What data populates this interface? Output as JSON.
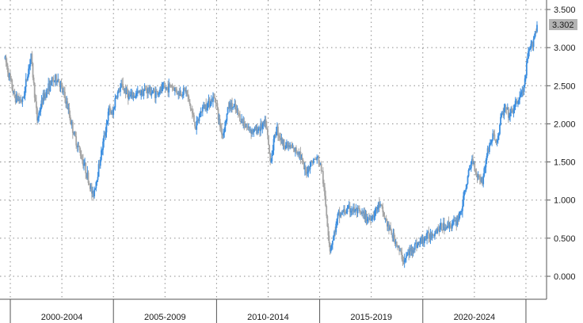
{
  "chart_data": {
    "type": "candlestick",
    "title": "",
    "xlabel": "",
    "ylabel": "",
    "x_axis_labels": [
      "2000-2004",
      "2005-2009",
      "2010-2014",
      "2015-2019",
      "2020-2024"
    ],
    "y_axis": {
      "ticks": [
        "0.000",
        "0.500",
        "1.000",
        "1.500",
        "2.000",
        "2.500",
        "3.000",
        "3.500"
      ],
      "tick_values": [
        0,
        0.5,
        1.0,
        1.5,
        2.0,
        2.5,
        3.0,
        3.5
      ],
      "range": [
        -0.3,
        3.65
      ],
      "position": "right"
    },
    "last_value_label": "3.302",
    "last_value": 3.302,
    "grid": true,
    "colors": {
      "up": "#3d8fe0",
      "down": "#a6a6a6",
      "grid": "#8c8c8c",
      "label_box": "#b3b3b3",
      "axis": "#555555"
    },
    "series": [
      {
        "period": "2000-2004",
        "points": [
          [
            1999.75,
            2.85
          ],
          [
            2000.2,
            2.35
          ],
          [
            2000.6,
            2.3
          ],
          [
            2001.0,
            2.9
          ],
          [
            2001.3,
            2.05
          ],
          [
            2001.6,
            2.35
          ],
          [
            2002.0,
            2.55
          ],
          [
            2002.3,
            2.6
          ],
          [
            2002.7,
            2.3
          ],
          [
            2003.1,
            1.85
          ],
          [
            2003.6,
            1.45
          ],
          [
            2004.0,
            1.05
          ],
          [
            2004.2,
            1.3
          ],
          [
            2004.6,
            1.9
          ],
          [
            2004.8,
            2.2
          ],
          [
            2004.95,
            2.1
          ]
        ]
      },
      {
        "period": "2005-2009",
        "points": [
          [
            2005.1,
            2.35
          ],
          [
            2005.4,
            2.5
          ],
          [
            2005.8,
            2.35
          ],
          [
            2006.2,
            2.4
          ],
          [
            2006.6,
            2.45
          ],
          [
            2007.0,
            2.4
          ],
          [
            2007.4,
            2.45
          ],
          [
            2007.8,
            2.5
          ],
          [
            2008.2,
            2.4
          ],
          [
            2008.5,
            2.45
          ],
          [
            2008.8,
            2.15
          ],
          [
            2009.0,
            1.95
          ],
          [
            2009.3,
            2.2
          ],
          [
            2009.7,
            2.3
          ],
          [
            2009.95,
            2.35
          ]
        ]
      },
      {
        "period": "2010-2014",
        "points": [
          [
            2010.1,
            2.05
          ],
          [
            2010.3,
            1.85
          ],
          [
            2010.6,
            2.25
          ],
          [
            2010.9,
            2.2
          ],
          [
            2011.2,
            2.05
          ],
          [
            2011.5,
            1.95
          ],
          [
            2011.8,
            1.9
          ],
          [
            2012.1,
            1.95
          ],
          [
            2012.4,
            2.0
          ],
          [
            2012.6,
            1.5
          ],
          [
            2012.9,
            1.95
          ],
          [
            2013.2,
            1.75
          ],
          [
            2013.5,
            1.7
          ],
          [
            2013.8,
            1.65
          ],
          [
            2014.0,
            1.65
          ],
          [
            2014.3,
            1.35
          ],
          [
            2014.6,
            1.5
          ],
          [
            2014.9,
            1.55
          ]
        ]
      },
      {
        "period": "2015-2019",
        "points": [
          [
            2015.1,
            1.4
          ],
          [
            2015.3,
            0.9
          ],
          [
            2015.5,
            0.35
          ],
          [
            2015.7,
            0.55
          ],
          [
            2015.9,
            0.8
          ],
          [
            2016.2,
            0.85
          ],
          [
            2016.5,
            0.88
          ],
          [
            2016.8,
            0.85
          ],
          [
            2017.1,
            0.8
          ],
          [
            2017.4,
            0.75
          ],
          [
            2017.7,
            0.85
          ],
          [
            2017.9,
            0.95
          ],
          [
            2018.1,
            0.8
          ],
          [
            2018.4,
            0.6
          ],
          [
            2018.7,
            0.45
          ],
          [
            2018.9,
            0.3
          ],
          [
            2019.1,
            0.2
          ],
          [
            2019.3,
            0.3
          ],
          [
            2019.6,
            0.4
          ],
          [
            2019.9,
            0.45
          ]
        ]
      },
      {
        "period": "2020-2024",
        "points": [
          [
            2020.1,
            0.5
          ],
          [
            2020.4,
            0.55
          ],
          [
            2020.7,
            0.62
          ],
          [
            2021.0,
            0.65
          ],
          [
            2021.3,
            0.68
          ],
          [
            2021.6,
            0.7
          ],
          [
            2021.9,
            0.9
          ],
          [
            2022.1,
            1.2
          ],
          [
            2022.4,
            1.55
          ],
          [
            2022.6,
            1.35
          ],
          [
            2022.9,
            1.25
          ],
          [
            2023.1,
            1.6
          ],
          [
            2023.4,
            1.85
          ],
          [
            2023.6,
            1.75
          ],
          [
            2023.8,
            2.1
          ],
          [
            2024.0,
            2.2
          ],
          [
            2024.2,
            2.1
          ],
          [
            2024.5,
            2.25
          ],
          [
            2024.7,
            2.35
          ],
          [
            2024.9,
            2.45
          ],
          [
            2025.1,
            2.9
          ],
          [
            2025.3,
            3.05
          ],
          [
            2025.55,
            3.302
          ]
        ]
      }
    ]
  }
}
